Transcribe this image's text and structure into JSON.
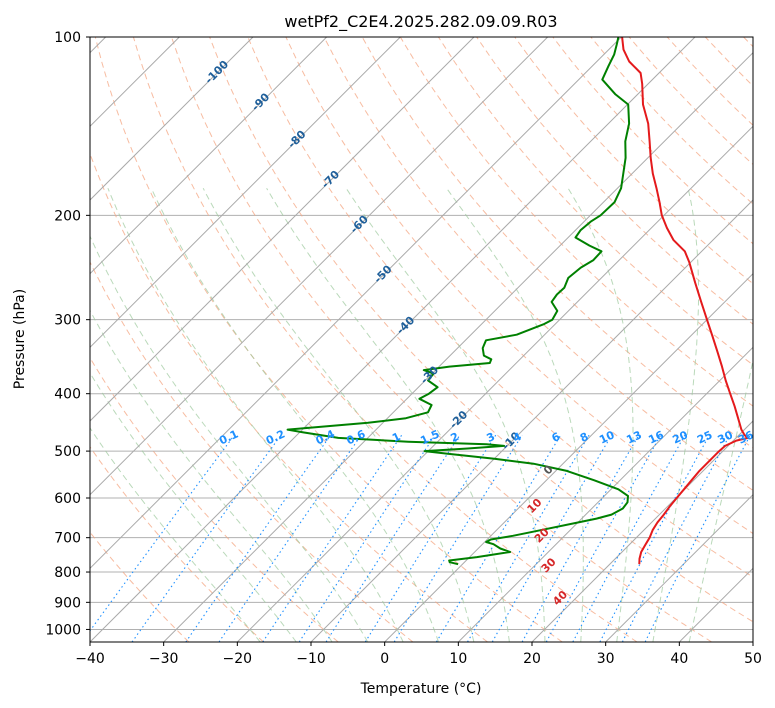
{
  "chart_data": {
    "type": "line",
    "title": "wetPf2_C2E4.2025.282.09.09.R03",
    "xlabel": "Temperature (°C)",
    "ylabel": "Pressure (hPa)",
    "xlim": [
      -40,
      50
    ],
    "ylim": [
      1050,
      100
    ],
    "y_scale": "log",
    "x_ticks": [
      "−40",
      "−30",
      "−20",
      "−10",
      "0",
      "10",
      "20",
      "30",
      "40",
      "50"
    ],
    "y_ticks": [
      "100",
      "200",
      "300",
      "400",
      "500",
      "600",
      "700",
      "800",
      "900",
      "1000"
    ],
    "grid": true,
    "skew": "isotherms at 45°",
    "colors": {
      "temperature": "#e41a1c",
      "dewpoint": "#008000",
      "isotherm_label": "#1f5f9a",
      "mixing_ratio": "#1e90ff",
      "moist_adiabat_label": "#d62728",
      "lcl_label": "#555555"
    },
    "isotherm_labels": [
      "-100",
      "-90",
      "-80",
      "-70",
      "-60",
      "-50",
      "-40",
      "-30",
      "-20",
      "-10"
    ],
    "mixing_ratio_labels": [
      "0.1",
      "0.2",
      "0.4",
      "0.6",
      "1",
      "1.5",
      "2",
      "3",
      "4",
      "6",
      "8",
      "10",
      "13",
      "16",
      "20",
      "25",
      "30",
      "36"
    ],
    "moist_adiabat_labels": [
      "0",
      "10",
      "20",
      "30",
      "40"
    ],
    "series": [
      {
        "key": "temperature",
        "points": [
          [
            776,
            24.0
          ],
          [
            760,
            23.3
          ],
          [
            740,
            22.6
          ],
          [
            720,
            22.2
          ],
          [
            700,
            21.8
          ],
          [
            680,
            21.2
          ],
          [
            660,
            20.8
          ],
          [
            640,
            20.6
          ],
          [
            620,
            20.3
          ],
          [
            600,
            20.1
          ],
          [
            580,
            19.9
          ],
          [
            560,
            19.7
          ],
          [
            540,
            19.5
          ],
          [
            520,
            19.5
          ],
          [
            500,
            19.5
          ],
          [
            490,
            19.6
          ],
          [
            480,
            20.4
          ],
          [
            475,
            21.6
          ],
          [
            470,
            20.8
          ],
          [
            460,
            19.6
          ],
          [
            440,
            17.6
          ],
          [
            420,
            15.5
          ],
          [
            400,
            13.2
          ],
          [
            380,
            10.8
          ],
          [
            360,
            8.4
          ],
          [
            340,
            5.8
          ],
          [
            320,
            3.0
          ],
          [
            300,
            0.0
          ],
          [
            280,
            -3.2
          ],
          [
            260,
            -6.6
          ],
          [
            240,
            -10.2
          ],
          [
            230,
            -12.3
          ],
          [
            220,
            -15.4
          ],
          [
            210,
            -17.9
          ],
          [
            200,
            -20.3
          ],
          [
            190,
            -22.4
          ],
          [
            180,
            -24.7
          ],
          [
            170,
            -27.2
          ],
          [
            160,
            -29.6
          ],
          [
            150,
            -32.0
          ],
          [
            140,
            -34.6
          ],
          [
            130,
            -37.9
          ],
          [
            120,
            -40.8
          ],
          [
            115,
            -42.5
          ],
          [
            110,
            -45.6
          ],
          [
            105,
            -48.0
          ],
          [
            100,
            -49.9
          ]
        ]
      },
      {
        "key": "dewpoint",
        "points": [
          [
            776,
            -0.6
          ],
          [
            770,
            -2.0
          ],
          [
            765,
            -2.3
          ],
          [
            755,
            1.0
          ],
          [
            740,
            4.8
          ],
          [
            730,
            3.0
          ],
          [
            718,
            1.5
          ],
          [
            712,
            0.2
          ],
          [
            705,
            0.5
          ],
          [
            695,
            3.0
          ],
          [
            680,
            6.0
          ],
          [
            660,
            10.0
          ],
          [
            650,
            12.0
          ],
          [
            640,
            13.5
          ],
          [
            625,
            14.2
          ],
          [
            610,
            14.0
          ],
          [
            595,
            13.2
          ],
          [
            580,
            11.0
          ],
          [
            560,
            6.5
          ],
          [
            540,
            1.5
          ],
          [
            525,
            -4.0
          ],
          [
            515,
            -10.0
          ],
          [
            505,
            -17.0
          ],
          [
            500,
            -20.5
          ],
          [
            495,
            -15.0
          ],
          [
            490,
            -10.4
          ],
          [
            487,
            -13.0
          ],
          [
            482,
            -24.0
          ],
          [
            475,
            -34.0
          ],
          [
            465,
            -39.5
          ],
          [
            460,
            -42.0
          ],
          [
            448,
            -32.0
          ],
          [
            440,
            -27.5
          ],
          [
            430,
            -25.3
          ],
          [
            418,
            -25.8
          ],
          [
            408,
            -28.3
          ],
          [
            400,
            -27.7
          ],
          [
            390,
            -27.4
          ],
          [
            380,
            -29.6
          ],
          [
            370,
            -29.8
          ],
          [
            365,
            -31.6
          ],
          [
            360,
            -28.6
          ],
          [
            355,
            -23.6
          ],
          [
            350,
            -23.9
          ],
          [
            345,
            -25.4
          ],
          [
            335,
            -26.6
          ],
          [
            325,
            -27.2
          ],
          [
            318,
            -23.8
          ],
          [
            305,
            -21.5
          ],
          [
            300,
            -21.0
          ],
          [
            290,
            -21.5
          ],
          [
            280,
            -23.5
          ],
          [
            272,
            -23.8
          ],
          [
            265,
            -23.7
          ],
          [
            255,
            -24.5
          ],
          [
            245,
            -24.2
          ],
          [
            238,
            -23.5
          ],
          [
            230,
            -23.6
          ],
          [
            225,
            -26.0
          ],
          [
            218,
            -29.0
          ],
          [
            212,
            -29.3
          ],
          [
            205,
            -29.1
          ],
          [
            200,
            -28.6
          ],
          [
            190,
            -28.5
          ],
          [
            180,
            -29.5
          ],
          [
            170,
            -31.2
          ],
          [
            160,
            -33.0
          ],
          [
            150,
            -35.3
          ],
          [
            140,
            -37.2
          ],
          [
            130,
            -39.9
          ],
          [
            125,
            -43.0
          ],
          [
            118,
            -46.8
          ],
          [
            112,
            -47.8
          ],
          [
            107,
            -48.6
          ],
          [
            103,
            -49.6
          ],
          [
            100,
            -50.4
          ]
        ]
      }
    ]
  }
}
